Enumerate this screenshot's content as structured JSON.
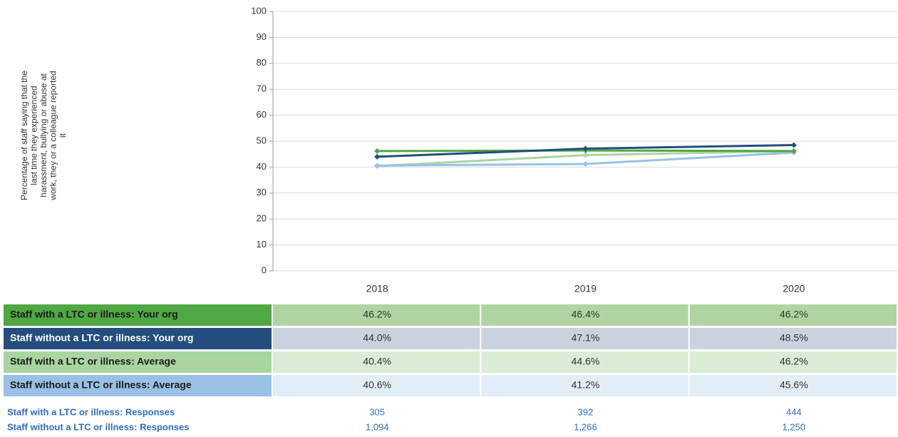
{
  "chart_data": {
    "type": "line",
    "y_label_lines": [
      "Percentage of staff saying that the",
      "last time they experienced",
      "harassment, bullying or abuse at",
      "work, they or a colleague reported",
      "it"
    ],
    "categories": [
      "2018",
      "2019",
      "2020"
    ],
    "ylim": [
      0,
      100
    ],
    "yticks": [
      0,
      10,
      20,
      30,
      40,
      50,
      60,
      70,
      80,
      90,
      100
    ],
    "grid": true,
    "series": [
      {
        "name": "Staff with a LTC or illness: Your org",
        "color": "#4fa843",
        "label_text_color": "#1a1a1a",
        "row_color": "#aed5a1",
        "values": [
          46.2,
          46.4,
          46.2
        ],
        "value_labels": [
          "46.2%",
          "46.4%",
          "46.2%"
        ]
      },
      {
        "name": "Staff without a LTC or illness: Your org",
        "color": "#234e7d",
        "label_text_color": "#ffffff",
        "row_color": "#c9d2dd",
        "values": [
          44.0,
          47.1,
          48.5
        ],
        "value_labels": [
          "44.0%",
          "47.1%",
          "48.5%"
        ]
      },
      {
        "name": "Staff with a LTC or illness: Average",
        "color": "#a9d6a0",
        "label_text_color": "#1a1a1a",
        "row_color": "#d9ecd5",
        "values": [
          40.4,
          44.6,
          46.2
        ],
        "value_labels": [
          "40.4%",
          "44.6%",
          "46.2%"
        ]
      },
      {
        "name": "Staff without a LTC or illness: Average",
        "color": "#98c1e5",
        "label_text_color": "#1a1a1a",
        "row_color": "#e2eef7",
        "values": [
          40.6,
          41.2,
          45.6
        ],
        "value_labels": [
          "40.6%",
          "41.2%",
          "45.6%"
        ]
      }
    ],
    "responses": [
      {
        "name": "Staff with a LTC or illness: Responses",
        "values": [
          305,
          392,
          444
        ]
      },
      {
        "name": "Staff without a LTC or illness: Responses",
        "values": [
          1094,
          1266,
          1250
        ],
        "value_labels": [
          "1,094",
          "1,266",
          "1,250"
        ]
      }
    ]
  }
}
